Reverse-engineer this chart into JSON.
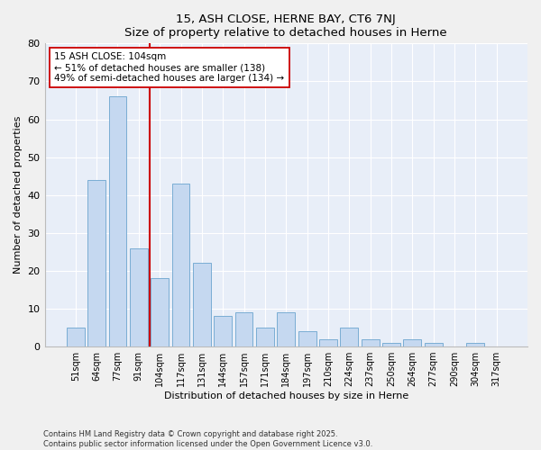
{
  "title": "15, ASH CLOSE, HERNE BAY, CT6 7NJ",
  "subtitle": "Size of property relative to detached houses in Herne",
  "xlabel": "Distribution of detached houses by size in Herne",
  "ylabel": "Number of detached properties",
  "bar_color": "#c5d8f0",
  "bar_edge_color": "#7aadd4",
  "background_color": "#e8eef8",
  "grid_color": "#ffffff",
  "categories": [
    "51sqm",
    "64sqm",
    "77sqm",
    "91sqm",
    "104sqm",
    "117sqm",
    "131sqm",
    "144sqm",
    "157sqm",
    "171sqm",
    "184sqm",
    "197sqm",
    "210sqm",
    "224sqm",
    "237sqm",
    "250sqm",
    "264sqm",
    "277sqm",
    "290sqm",
    "304sqm",
    "317sqm"
  ],
  "values": [
    5,
    44,
    66,
    26,
    18,
    43,
    22,
    8,
    9,
    5,
    9,
    4,
    2,
    5,
    2,
    1,
    2,
    1,
    0,
    1,
    0
  ],
  "vline_index": 3.5,
  "vline_color": "#cc0000",
  "annotation_text": "15 ASH CLOSE: 104sqm\n← 51% of detached houses are smaller (138)\n49% of semi-detached houses are larger (134) →",
  "annotation_box_color": "#ffffff",
  "annotation_box_edge": "#cc0000",
  "ylim": [
    0,
    80
  ],
  "yticks": [
    0,
    10,
    20,
    30,
    40,
    50,
    60,
    70,
    80
  ],
  "fig_width": 6.0,
  "fig_height": 5.0,
  "dpi": 100,
  "footer_line1": "Contains HM Land Registry data © Crown copyright and database right 2025.",
  "footer_line2": "Contains public sector information licensed under the Open Government Licence v3.0."
}
